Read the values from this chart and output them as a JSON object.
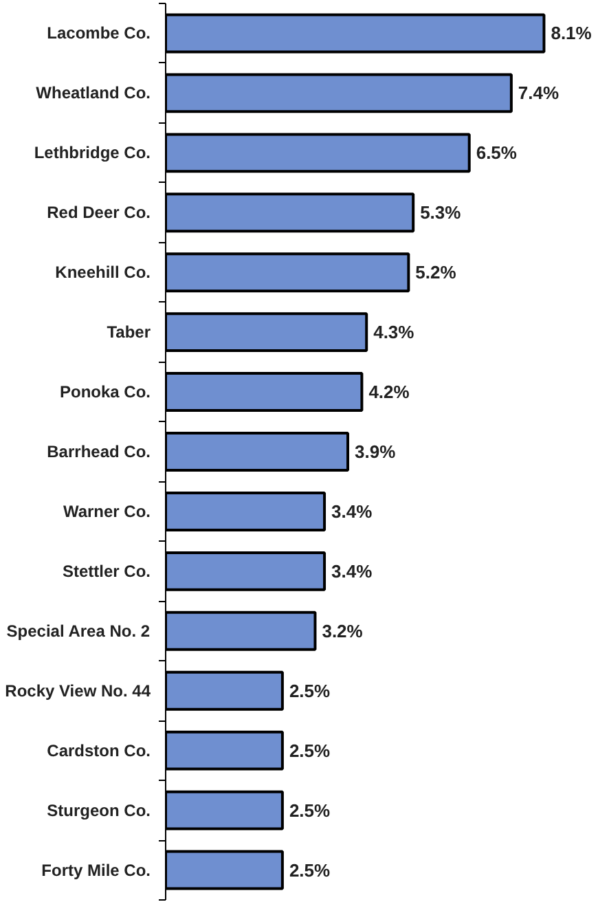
{
  "chart_data": {
    "type": "bar",
    "orientation": "horizontal",
    "categories": [
      "Lacombe Co.",
      "Wheatland Co.",
      "Lethbridge Co.",
      "Red Deer Co.",
      "Kneehill Co.",
      "Taber",
      "Ponoka Co.",
      "Barrhead Co.",
      "Warner Co.",
      "Stettler Co.",
      "Special Area No. 2",
      "Rocky View No. 44",
      "Cardston Co.",
      "Sturgeon Co.",
      "Forty Mile Co."
    ],
    "values": [
      8.1,
      7.4,
      6.5,
      5.3,
      5.2,
      4.3,
      4.2,
      3.9,
      3.4,
      3.4,
      3.2,
      2.5,
      2.5,
      2.5,
      2.5
    ],
    "value_labels": [
      "8.1%",
      "7.4%",
      "6.5%",
      "5.3%",
      "5.2%",
      "4.3%",
      "4.2%",
      "3.9%",
      "3.4%",
      "3.4%",
      "3.2%",
      "2.5%",
      "2.5%",
      "2.5%",
      "2.5%"
    ],
    "color": "#6f8fd0",
    "tick_labels": "y"
  }
}
